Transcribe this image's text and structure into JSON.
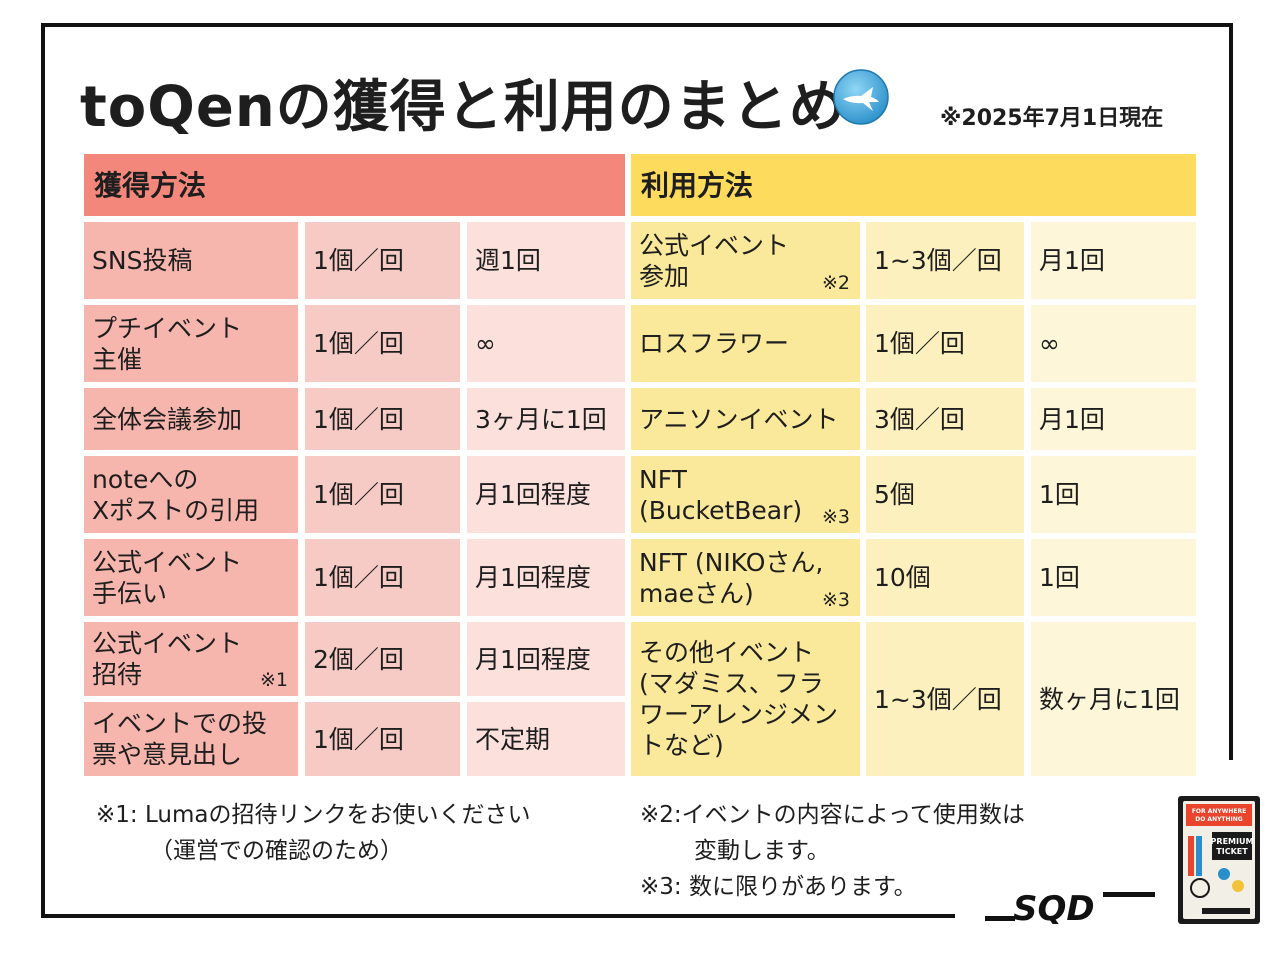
{
  "header": {
    "title": "toQenの獲得と利用のまとめ",
    "as_of": "※2025年7月1日現在"
  },
  "earn": {
    "heading": "獲得方法",
    "rows": [
      {
        "method": "SNS投稿",
        "amount": "1個／回",
        "frequency": "週1回",
        "note": ""
      },
      {
        "method": "プチイベント\n主催",
        "amount": "1個／回",
        "frequency": "∞",
        "note": ""
      },
      {
        "method": "全体会議参加",
        "amount": "1個／回",
        "frequency": "3ヶ月に1回",
        "note": ""
      },
      {
        "method": "noteへの\nXポストの引用",
        "amount": "1個／回",
        "frequency": "月1回程度",
        "note": ""
      },
      {
        "method": "公式イベント\n手伝い",
        "amount": "1個／回",
        "frequency": "月1回程度",
        "note": ""
      },
      {
        "method": "公式イベント\n招待",
        "amount": "2個／回",
        "frequency": "月1回程度",
        "note": "※1"
      },
      {
        "method": "イベントでの投\n票や意見出し",
        "amount": "1個／回",
        "frequency": "不定期",
        "note": ""
      }
    ]
  },
  "use": {
    "heading": "利用方法",
    "rows": [
      {
        "method": "公式イベント\n参加",
        "amount": "1~3個／回",
        "frequency": "月1回",
        "note": "※2"
      },
      {
        "method": "ロスフラワー",
        "amount": "1個／回",
        "frequency": "∞",
        "note": ""
      },
      {
        "method": "アニソンイベント",
        "amount": "3個／回",
        "frequency": "月1回",
        "note": ""
      },
      {
        "method": "NFT\n(BucketBear)",
        "amount": "5個",
        "frequency": "1回",
        "note": "※3"
      },
      {
        "method": "NFT (NIKOさん,\nmaeさん)",
        "amount": "10個",
        "frequency": "1回",
        "note": "※3"
      },
      {
        "method": "その他イベント\n(マダミス、フラ\nワーアレンジメン\nトなど)",
        "amount": "1~3個／回",
        "frequency": "数ヶ月に1回",
        "note": ""
      }
    ]
  },
  "notes": {
    "n1_line1": "※1: Lumaの招待リンクをお使いください",
    "n1_line2": "（運営での確認のため）",
    "n2_line1": "※2:イベントの内容によって使用数は",
    "n2_line2": "変動します。",
    "n3": "※3: 数に限りがあります。"
  },
  "icons": {
    "title_icon": "blue-circle-toqen-icon",
    "brand_logo": "sqd-logo",
    "ticket": "premium-ticket-image"
  },
  "ticket": {
    "line1": "FOR ANYWHERE",
    "line2": "DO ANYTHING",
    "line3": "PREMIUM",
    "line4": "TICKET"
  },
  "brand": {
    "name": "SQD"
  },
  "colors": {
    "earn_header": "#f4877b",
    "earn_col1": "#f7b6ad",
    "earn_col2": "#f6cbc6",
    "earn_col3": "#fbe0dc",
    "use_header": "#fddb5c",
    "use_col1": "#fbe99b",
    "use_col2": "#fdf0bf",
    "use_col3": "#fef6d9"
  }
}
